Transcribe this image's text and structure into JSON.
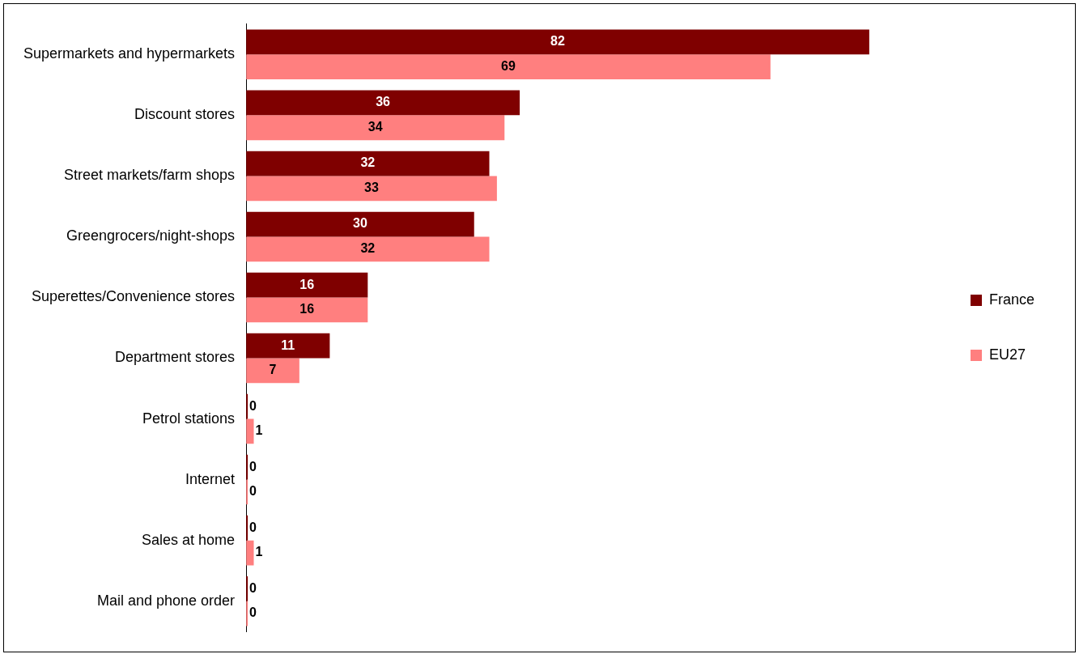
{
  "chart_data": {
    "type": "bar",
    "orientation": "horizontal",
    "categories": [
      "Supermarkets and hypermarkets",
      "Discount stores",
      "Street markets/farm shops",
      "Greengrocers/night-shops",
      "Superettes/Convenience stores",
      "Department stores",
      "Petrol stations",
      "Internet",
      "Sales at home",
      "Mail and phone order"
    ],
    "series": [
      {
        "name": "France",
        "color": "#7f0000",
        "values": [
          82,
          36,
          32,
          30,
          16,
          11,
          0,
          0,
          0,
          0
        ]
      },
      {
        "name": "EU27",
        "color": "#ff7f7f",
        "values": [
          69,
          34,
          33,
          32,
          16,
          7,
          1,
          0,
          1,
          0
        ]
      }
    ],
    "data_labels": true,
    "legend": "right",
    "grid": false,
    "tick_labels": "y"
  }
}
